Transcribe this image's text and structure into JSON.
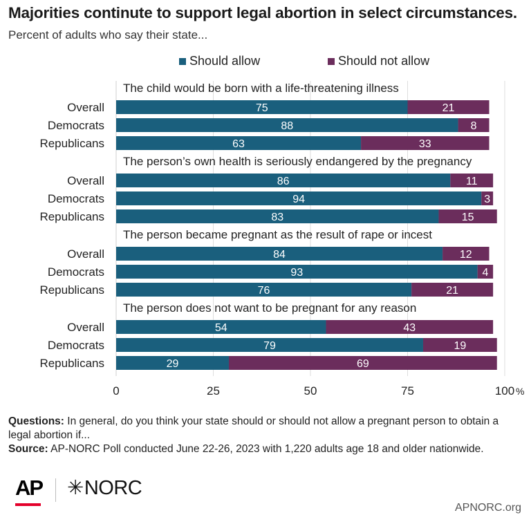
{
  "title": "Majorities continute to support legal abortion in select circumstances.",
  "subtitle": "Percent of adults who say their state...",
  "legend": [
    {
      "label": "Should allow",
      "color": "#1a5f7d"
    },
    {
      "label": "Should not allow",
      "color": "#6b2d5c"
    }
  ],
  "chart_data": {
    "type": "bar",
    "orientation": "horizontal",
    "stacked": true,
    "xlim": [
      0,
      100
    ],
    "x_ticks": [
      "0",
      "25",
      "50",
      "75",
      "100"
    ],
    "x_unit": "%",
    "series_names": [
      "Should allow",
      "Should not allow"
    ],
    "colors": {
      "allow": "#1a5f7d",
      "not_allow": "#6b2d5c"
    },
    "groups": [
      {
        "heading": "The child would be born with a life-threatening illness",
        "rows": [
          {
            "label": "Overall",
            "allow": 75,
            "not_allow": 21
          },
          {
            "label": "Democrats",
            "allow": 88,
            "not_allow": 8
          },
          {
            "label": "Republicans",
            "allow": 63,
            "not_allow": 33
          }
        ]
      },
      {
        "heading": "The person’s own health is seriously endangered by the pregnancy",
        "rows": [
          {
            "label": "Overall",
            "allow": 86,
            "not_allow": 11
          },
          {
            "label": "Democrats",
            "allow": 94,
            "not_allow": 3
          },
          {
            "label": "Republicans",
            "allow": 83,
            "not_allow": 15
          }
        ]
      },
      {
        "heading": "The person became pregnant as the result of rape or incest",
        "rows": [
          {
            "label": "Overall",
            "allow": 84,
            "not_allow": 12
          },
          {
            "label": "Democrats",
            "allow": 93,
            "not_allow": 4
          },
          {
            "label": "Republicans",
            "allow": 76,
            "not_allow": 21
          }
        ]
      },
      {
        "heading": "The person does not want to be pregnant for any reason",
        "rows": [
          {
            "label": "Overall",
            "allow": 54,
            "not_allow": 43
          },
          {
            "label": "Democrats",
            "allow": 79,
            "not_allow": 19
          },
          {
            "label": "Republicans",
            "allow": 29,
            "not_allow": 69
          }
        ]
      }
    ]
  },
  "footnote": {
    "questions_label": "Questions:",
    "questions_text": " In general, do you think your state should or should not allow a pregnant person to obtain a legal abortion if...",
    "source_label": "Source:",
    "source_text": " AP-NORC Poll conducted June 22-26, 2023 with 1,220 adults age 18 and older nationwide."
  },
  "branding": {
    "ap": "AP",
    "norc": "NORC",
    "site": "APNORC.org"
  }
}
